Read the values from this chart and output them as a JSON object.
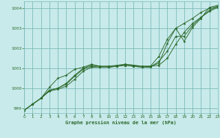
{
  "title": "Graphe pression niveau de la mer (hPa)",
  "background_color": "#c8eaea",
  "grid_color": "#7ab8b8",
  "line_color": "#2d6a2d",
  "xlim": [
    0,
    23
  ],
  "ylim": [
    998.75,
    1004.35
  ],
  "yticks": [
    999,
    1000,
    1001,
    1002,
    1003,
    1004
  ],
  "xticks": [
    0,
    1,
    2,
    3,
    4,
    5,
    6,
    7,
    8,
    9,
    10,
    11,
    12,
    13,
    14,
    15,
    16,
    17,
    18,
    19,
    20,
    21,
    22,
    23
  ],
  "series": [
    [
      998.9,
      999.2,
      999.5,
      999.85,
      999.95,
      1000.1,
      1000.45,
      1000.85,
      1001.05,
      1001.05,
      1001.05,
      1001.1,
      1001.15,
      1001.1,
      1001.05,
      1001.1,
      1001.15,
      1001.5,
      1002.2,
      1002.8,
      1003.25,
      1003.55,
      1003.85,
      1004.05
    ],
    [
      998.9,
      999.2,
      999.5,
      999.9,
      1000.0,
      1000.25,
      1000.65,
      1001.0,
      1001.15,
      1001.1,
      1001.1,
      1001.1,
      1001.2,
      1001.15,
      1001.1,
      1001.1,
      1001.25,
      1002.25,
      1003.0,
      1003.25,
      1003.5,
      1003.8,
      1004.0,
      1004.1
    ],
    [
      998.9,
      999.2,
      999.5,
      1000.05,
      1000.5,
      1000.65,
      1000.95,
      1001.05,
      1001.2,
      1001.1,
      1001.1,
      1001.15,
      1001.2,
      1001.15,
      1001.1,
      1001.1,
      1001.6,
      1002.45,
      1003.0,
      1002.35,
      1003.05,
      1003.5,
      1004.05,
      1004.15
    ],
    [
      998.9,
      999.2,
      999.5,
      999.9,
      1000.0,
      1000.2,
      1000.6,
      1000.95,
      1001.1,
      1001.05,
      1001.05,
      1001.1,
      1001.15,
      1001.1,
      1001.05,
      1001.05,
      1001.35,
      1001.85,
      1002.6,
      1002.6,
      1003.15,
      1003.55,
      1003.9,
      1004.1
    ]
  ]
}
